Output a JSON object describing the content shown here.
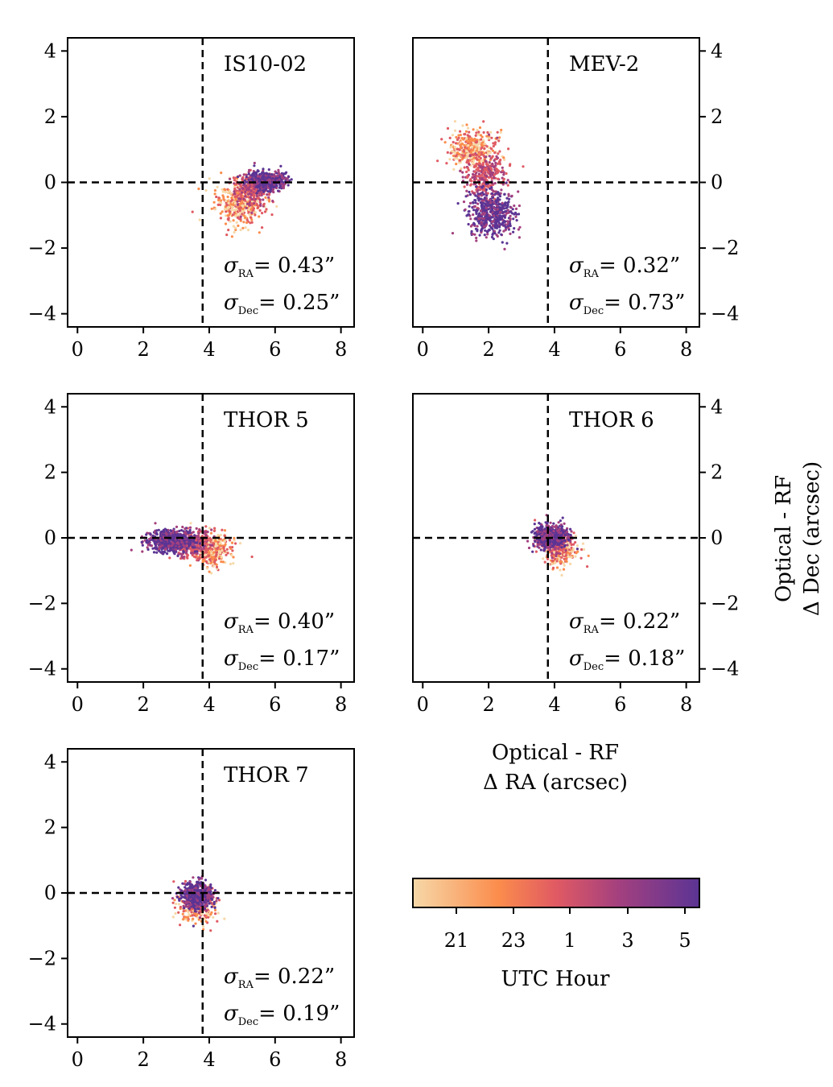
{
  "figure": {
    "shared_xlabel_line1": "Optical - RF",
    "shared_xlabel_line2": "Δ RA (arcsec)",
    "shared_ylabel_line1": "Optical - RF",
    "shared_ylabel_line2": "Δ Dec (arcsec)",
    "colorbar_label": "UTC Hour",
    "colorbar_ticks": [
      "21",
      "23",
      "1",
      "3",
      "5"
    ],
    "colorbar_colors": [
      "#f6d8a8",
      "#fb8c4c",
      "#e05a63",
      "#a3407f",
      "#5b3494"
    ]
  },
  "chart_data": [
    {
      "type": "scatter",
      "title": "IS10-02",
      "xlim": [
        -0.3,
        8.4
      ],
      "ylim": [
        -4.4,
        4.4
      ],
      "xticks": [
        0,
        2,
        4,
        6,
        8
      ],
      "yticks": [
        4,
        2,
        0,
        -2,
        -4
      ],
      "ytick_labels": [
        "4",
        "2",
        "0",
        "−2",
        "−4"
      ],
      "reference_lines": {
        "x": 3.8,
        "y": 0
      },
      "clusters": [
        {
          "hour": "early",
          "cx": 4.9,
          "cy": -0.6,
          "sx": 0.35,
          "sy": 0.35,
          "n": 420
        },
        {
          "hour": "mid",
          "cx": 5.3,
          "cy": -0.2,
          "sx": 0.3,
          "sy": 0.25,
          "n": 260
        },
        {
          "hour": "late",
          "cx": 5.8,
          "cy": 0.05,
          "sx": 0.28,
          "sy": 0.13,
          "n": 480
        }
      ],
      "sigma_ra": "= 0.43”",
      "sigma_dec": "= 0.25”"
    },
    {
      "type": "scatter",
      "title": "MEV-2",
      "xlim": [
        -0.3,
        8.4
      ],
      "ylim": [
        -4.4,
        4.4
      ],
      "xticks": [
        0,
        2,
        4,
        6,
        8
      ],
      "yticks": [
        4,
        2,
        0,
        -2,
        -4
      ],
      "ytick_labels": [
        "4",
        "2",
        "0",
        "−2",
        "−4"
      ],
      "reference_lines": {
        "x": 3.8,
        "y": 0
      },
      "clusters": [
        {
          "hour": "early",
          "cx": 1.5,
          "cy": 1.0,
          "sx": 0.35,
          "sy": 0.3,
          "n": 380
        },
        {
          "hour": "mid",
          "cx": 1.9,
          "cy": 0.2,
          "sx": 0.3,
          "sy": 0.35,
          "n": 300
        },
        {
          "hour": "late",
          "cx": 2.1,
          "cy": -0.95,
          "sx": 0.35,
          "sy": 0.35,
          "n": 520
        }
      ],
      "sigma_ra": "= 0.32”",
      "sigma_dec": "= 0.73”"
    },
    {
      "type": "scatter",
      "title": "THOR 5",
      "xlim": [
        -0.3,
        8.4
      ],
      "ylim": [
        -4.4,
        4.4
      ],
      "xticks": [
        0,
        2,
        4,
        6,
        8
      ],
      "yticks": [
        4,
        2,
        0,
        -2,
        -4
      ],
      "ytick_labels": [
        "4",
        "2",
        "0",
        "−2",
        "−4"
      ],
      "reference_lines": {
        "x": 3.8,
        "y": 0
      },
      "clusters": [
        {
          "hour": "early",
          "cx": 4.1,
          "cy": -0.35,
          "sx": 0.28,
          "sy": 0.25,
          "n": 340
        },
        {
          "hour": "mid",
          "cx": 3.5,
          "cy": -0.2,
          "sx": 0.3,
          "sy": 0.2,
          "n": 240
        },
        {
          "hour": "late",
          "cx": 2.8,
          "cy": -0.1,
          "sx": 0.35,
          "sy": 0.18,
          "n": 520
        }
      ],
      "sigma_ra": "= 0.40”",
      "sigma_dec": "= 0.17”"
    },
    {
      "type": "scatter",
      "title": "THOR 6",
      "xlim": [
        -0.3,
        8.4
      ],
      "ylim": [
        -4.4,
        4.4
      ],
      "xticks": [
        0,
        2,
        4,
        6,
        8
      ],
      "yticks": [
        4,
        2,
        0,
        -2,
        -4
      ],
      "ytick_labels": [
        "4",
        "2",
        "0",
        "−2",
        "−4"
      ],
      "reference_lines": {
        "x": 3.8,
        "y": 0
      },
      "clusters": [
        {
          "hour": "early",
          "cx": 4.2,
          "cy": -0.4,
          "sx": 0.28,
          "sy": 0.22,
          "n": 220
        },
        {
          "hour": "mid",
          "cx": 3.9,
          "cy": -0.1,
          "sx": 0.25,
          "sy": 0.18,
          "n": 200
        },
        {
          "hour": "late",
          "cx": 3.9,
          "cy": 0.05,
          "sx": 0.25,
          "sy": 0.17,
          "n": 520
        }
      ],
      "sigma_ra": "= 0.22”",
      "sigma_dec": "= 0.18”"
    },
    {
      "type": "scatter",
      "title": "THOR 7",
      "xlim": [
        -0.3,
        8.4
      ],
      "ylim": [
        -4.4,
        4.4
      ],
      "xticks": [
        0,
        2,
        4,
        6,
        8
      ],
      "yticks": [
        4,
        2,
        0,
        -2,
        -4
      ],
      "ytick_labels": [
        "4",
        "2",
        "0",
        "−2",
        "−4"
      ],
      "reference_lines": {
        "x": 3.8,
        "y": 0
      },
      "clusters": [
        {
          "hour": "early",
          "cx": 3.6,
          "cy": -0.45,
          "sx": 0.3,
          "sy": 0.25,
          "n": 200
        },
        {
          "hour": "mid",
          "cx": 3.6,
          "cy": -0.2,
          "sx": 0.25,
          "sy": 0.22,
          "n": 160
        },
        {
          "hour": "late",
          "cx": 3.65,
          "cy": -0.05,
          "sx": 0.22,
          "sy": 0.2,
          "n": 520
        }
      ],
      "sigma_ra": "= 0.22”",
      "sigma_dec": "= 0.19”"
    }
  ]
}
